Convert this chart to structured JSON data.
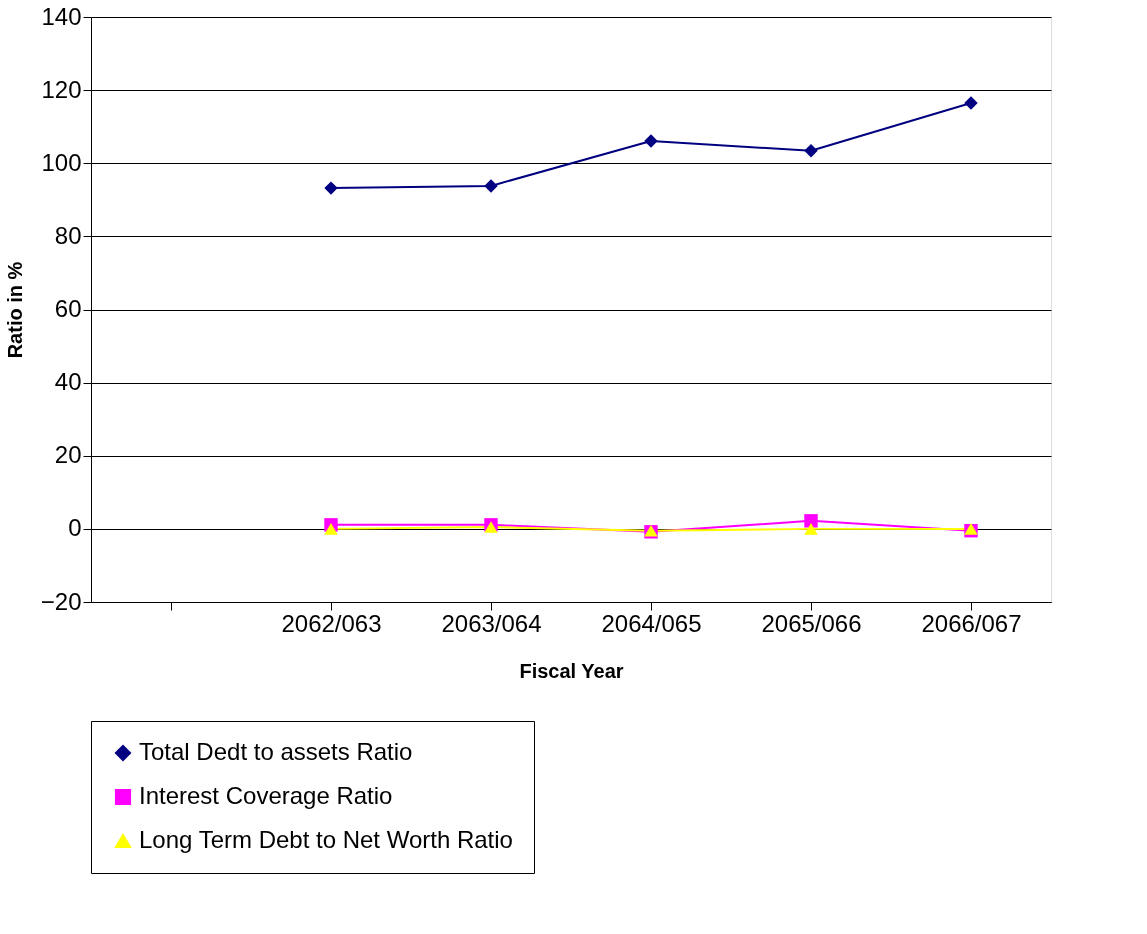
{
  "chart_data": {
    "type": "line",
    "xlabel": "Fiscal Year",
    "ylabel": "Ratio in %",
    "categories": [
      null,
      "2062/063",
      "2063/064",
      "2064/065",
      "2065/066",
      "2066/067"
    ],
    "series": [
      {
        "name": "Total Dedt to assets Ratio",
        "color": "#000080",
        "marker": "diamond",
        "values": [
          null,
          93.2,
          93.8,
          106.1,
          103.4,
          116.5
        ]
      },
      {
        "name": "Interest Coverage Ratio",
        "color": "#ff00ff",
        "marker": "square",
        "values": [
          null,
          1.1,
          1.1,
          -0.8,
          2.2,
          -0.5
        ]
      },
      {
        "name": "Long Term Debt to Net Worth Ratio",
        "color": "#ffff00",
        "marker": "triangle",
        "values": [
          null,
          0,
          0.5,
          -0.5,
          0,
          0
        ]
      }
    ],
    "ylim": [
      -20,
      140
    ],
    "yticks": [
      -20,
      0,
      20,
      40,
      60,
      80,
      100,
      120,
      140
    ],
    "grid": "y",
    "legend": "bottom"
  }
}
